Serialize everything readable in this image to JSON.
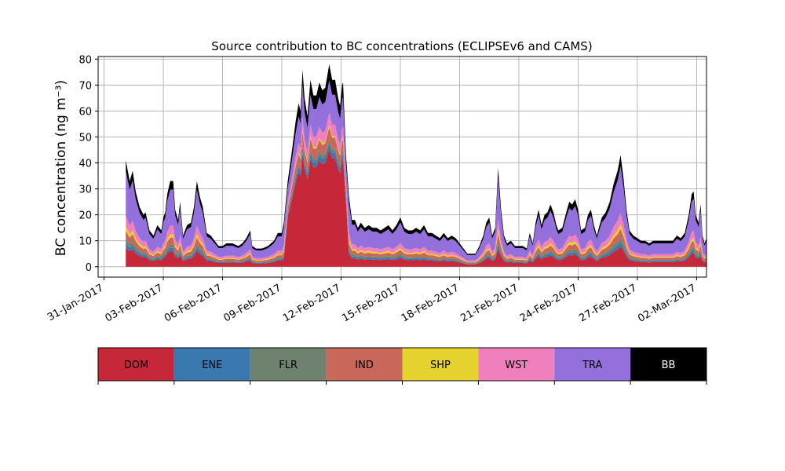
{
  "chart_data": {
    "type": "area",
    "title": "Source contribution to BC concentrations (ECLIPSEv6 and CAMS)",
    "xlabel": "",
    "ylabel": "BC concentration (ng m⁻³)",
    "ylim": [
      -4,
      81
    ],
    "yticks": [
      0,
      10,
      20,
      30,
      40,
      50,
      60,
      70,
      80
    ],
    "xlim_days": [
      -0.3,
      29.2
    ],
    "xticks": [
      {
        "day": 0,
        "label": "31-Jan-2017"
      },
      {
        "day": 3,
        "label": "03-Feb-2017"
      },
      {
        "day": 6,
        "label": "06-Feb-2017"
      },
      {
        "day": 9,
        "label": "09-Feb-2017"
      },
      {
        "day": 12,
        "label": "12-Feb-2017"
      },
      {
        "day": 15,
        "label": "15-Feb-2017"
      },
      {
        "day": 18,
        "label": "18-Feb-2017"
      },
      {
        "day": 21,
        "label": "21-Feb-2017"
      },
      {
        "day": 24,
        "label": "24-Feb-2017"
      },
      {
        "day": 27,
        "label": "27-Feb-2017"
      },
      {
        "day": 30,
        "label": "02-Mar-2017"
      }
    ],
    "grid": true,
    "stacked": true,
    "total_series": {
      "name": "total",
      "points": [
        [
          1.1,
          41
        ],
        [
          1.3,
          33
        ],
        [
          1.45,
          37
        ],
        [
          1.6,
          29
        ],
        [
          1.8,
          23
        ],
        [
          2.0,
          20
        ],
        [
          2.1,
          21
        ],
        [
          2.3,
          14
        ],
        [
          2.5,
          12
        ],
        [
          2.7,
          16
        ],
        [
          2.9,
          14
        ],
        [
          3.0,
          19
        ],
        [
          3.1,
          21
        ],
        [
          3.2,
          28
        ],
        [
          3.35,
          33
        ],
        [
          3.5,
          33
        ],
        [
          3.6,
          22
        ],
        [
          3.75,
          18
        ],
        [
          3.85,
          25
        ],
        [
          4.0,
          12
        ],
        [
          4.2,
          16
        ],
        [
          4.4,
          17
        ],
        [
          4.55,
          23
        ],
        [
          4.7,
          33
        ],
        [
          4.85,
          27
        ],
        [
          5.0,
          23
        ],
        [
          5.2,
          13
        ],
        [
          5.4,
          12
        ],
        [
          5.6,
          10
        ],
        [
          5.8,
          8
        ],
        [
          6.0,
          8
        ],
        [
          6.2,
          9
        ],
        [
          6.5,
          9
        ],
        [
          6.8,
          8
        ],
        [
          7.0,
          9
        ],
        [
          7.2,
          11
        ],
        [
          7.4,
          14
        ],
        [
          7.5,
          8
        ],
        [
          7.7,
          7
        ],
        [
          8.0,
          7
        ],
        [
          8.3,
          8
        ],
        [
          8.6,
          10
        ],
        [
          8.8,
          13
        ],
        [
          9.0,
          13
        ],
        [
          9.1,
          17
        ],
        [
          9.3,
          33
        ],
        [
          9.5,
          44
        ],
        [
          9.7,
          56
        ],
        [
          9.85,
          63
        ],
        [
          9.95,
          60
        ],
        [
          10.05,
          76
        ],
        [
          10.15,
          65
        ],
        [
          10.3,
          58
        ],
        [
          10.45,
          72
        ],
        [
          10.6,
          66
        ],
        [
          10.75,
          66
        ],
        [
          10.9,
          71
        ],
        [
          11.05,
          68
        ],
        [
          11.2,
          69
        ],
        [
          11.4,
          78
        ],
        [
          11.55,
          72
        ],
        [
          11.7,
          72
        ],
        [
          11.85,
          65
        ],
        [
          11.95,
          62
        ],
        [
          12.05,
          70
        ],
        [
          12.1,
          71
        ],
        [
          12.25,
          43
        ],
        [
          12.4,
          27
        ],
        [
          12.55,
          18
        ],
        [
          12.7,
          18
        ],
        [
          12.85,
          15
        ],
        [
          13.0,
          17
        ],
        [
          13.2,
          15
        ],
        [
          13.4,
          16
        ],
        [
          13.6,
          15
        ],
        [
          13.8,
          15
        ],
        [
          14.0,
          14
        ],
        [
          14.2,
          15
        ],
        [
          14.4,
          16
        ],
        [
          14.6,
          14
        ],
        [
          14.8,
          16
        ],
        [
          15.0,
          19
        ],
        [
          15.2,
          15
        ],
        [
          15.4,
          14
        ],
        [
          15.6,
          14
        ],
        [
          15.8,
          15
        ],
        [
          16.0,
          14
        ],
        [
          16.2,
          16
        ],
        [
          16.4,
          13
        ],
        [
          16.6,
          13
        ],
        [
          16.8,
          12
        ],
        [
          17.0,
          11
        ],
        [
          17.2,
          13
        ],
        [
          17.4,
          11
        ],
        [
          17.6,
          12
        ],
        [
          17.8,
          11
        ],
        [
          18.0,
          9
        ],
        [
          18.2,
          7
        ],
        [
          18.4,
          5
        ],
        [
          18.6,
          5
        ],
        [
          18.8,
          5
        ],
        [
          19.0,
          8
        ],
        [
          19.2,
          12
        ],
        [
          19.35,
          17
        ],
        [
          19.5,
          19
        ],
        [
          19.65,
          12
        ],
        [
          19.8,
          15
        ],
        [
          19.95,
          38
        ],
        [
          20.1,
          22
        ],
        [
          20.25,
          12
        ],
        [
          20.4,
          9
        ],
        [
          20.6,
          10
        ],
        [
          20.8,
          8
        ],
        [
          21.0,
          8
        ],
        [
          21.2,
          8
        ],
        [
          21.4,
          7
        ],
        [
          21.55,
          13
        ],
        [
          21.7,
          9
        ],
        [
          21.85,
          17
        ],
        [
          22.0,
          22
        ],
        [
          22.15,
          16
        ],
        [
          22.3,
          20
        ],
        [
          22.45,
          21
        ],
        [
          22.6,
          24
        ],
        [
          22.75,
          21
        ],
        [
          22.9,
          16
        ],
        [
          23.0,
          14
        ],
        [
          23.2,
          15
        ],
        [
          23.4,
          21
        ],
        [
          23.55,
          25
        ],
        [
          23.7,
          24
        ],
        [
          23.85,
          26
        ],
        [
          24.0,
          22
        ],
        [
          24.15,
          14
        ],
        [
          24.35,
          15
        ],
        [
          24.5,
          20
        ],
        [
          24.65,
          22
        ],
        [
          24.8,
          16
        ],
        [
          24.95,
          12
        ],
        [
          25.05,
          15
        ],
        [
          25.2,
          19
        ],
        [
          25.4,
          21
        ],
        [
          25.6,
          25
        ],
        [
          25.8,
          32
        ],
        [
          26.0,
          37
        ],
        [
          26.15,
          43
        ],
        [
          26.3,
          34
        ],
        [
          26.45,
          22
        ],
        [
          26.6,
          14
        ],
        [
          26.8,
          12
        ],
        [
          27.0,
          11
        ],
        [
          27.2,
          10
        ],
        [
          27.4,
          10
        ],
        [
          27.6,
          9
        ],
        [
          27.8,
          10
        ],
        [
          28.0,
          10
        ],
        [
          28.2,
          10
        ],
        [
          28.4,
          10
        ],
        [
          28.6,
          10
        ],
        [
          28.8,
          10
        ],
        [
          29.0,
          12
        ],
        [
          29.2,
          11
        ],
        [
          29.4,
          13
        ],
        [
          29.6,
          20
        ],
        [
          29.75,
          28
        ],
        [
          29.85,
          29
        ],
        [
          29.95,
          20
        ],
        [
          30.1,
          17
        ],
        [
          30.2,
          24
        ],
        [
          30.3,
          12
        ],
        [
          30.4,
          9
        ],
        [
          30.5,
          11
        ]
      ]
    },
    "series": [
      {
        "name": "DOM",
        "color": "#c6283a",
        "share": 0.18
      },
      {
        "name": "ENE",
        "color": "#3a78b0",
        "share": 0.04
      },
      {
        "name": "FLR",
        "color": "#6f8270",
        "share": 0.04
      },
      {
        "name": "IND",
        "color": "#c9685a",
        "share": 0.08
      },
      {
        "name": "SHP",
        "color": "#e6d22e",
        "share": 0.04
      },
      {
        "name": "WST",
        "color": "#f07fbe",
        "share": 0.1
      },
      {
        "name": "TRA",
        "color": "#9370db",
        "share": 0.42
      },
      {
        "name": "BB",
        "color": "#000000",
        "share": 0.1
      }
    ],
    "legend": {
      "placement": "below",
      "items": [
        {
          "label": "DOM",
          "color": "#c6283a",
          "text_color": "#000000"
        },
        {
          "label": "ENE",
          "color": "#3a78b0",
          "text_color": "#000000"
        },
        {
          "label": "FLR",
          "color": "#6f8270",
          "text_color": "#000000"
        },
        {
          "label": "IND",
          "color": "#c9685a",
          "text_color": "#000000"
        },
        {
          "label": "SHP",
          "color": "#e6d22e",
          "text_color": "#000000"
        },
        {
          "label": "WST",
          "color": "#f07fbe",
          "text_color": "#000000"
        },
        {
          "label": "TRA",
          "color": "#9370db",
          "text_color": "#000000"
        },
        {
          "label": "BB",
          "color": "#000000",
          "text_color": "#ffffff"
        }
      ]
    }
  }
}
